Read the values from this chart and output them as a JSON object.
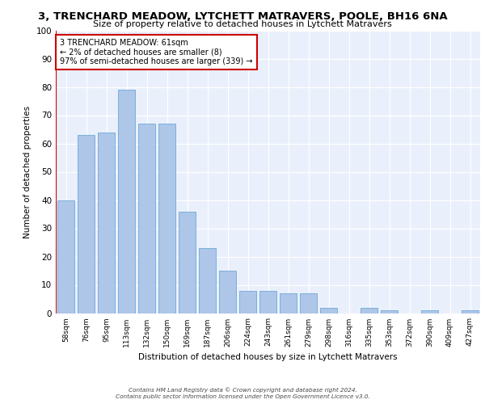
{
  "title": "3, TRENCHARD MEADOW, LYTCHETT MATRAVERS, POOLE, BH16 6NA",
  "subtitle": "Size of property relative to detached houses in Lytchett Matravers",
  "xlabel": "Distribution of detached houses by size in Lytchett Matravers",
  "ylabel": "Number of detached properties",
  "categories": [
    "58sqm",
    "76sqm",
    "95sqm",
    "113sqm",
    "132sqm",
    "150sqm",
    "169sqm",
    "187sqm",
    "206sqm",
    "224sqm",
    "243sqm",
    "261sqm",
    "279sqm",
    "298sqm",
    "316sqm",
    "335sqm",
    "353sqm",
    "372sqm",
    "390sqm",
    "409sqm",
    "427sqm"
  ],
  "values": [
    40,
    63,
    64,
    79,
    67,
    67,
    36,
    23,
    15,
    8,
    8,
    7,
    7,
    2,
    0,
    2,
    1,
    0,
    1,
    0,
    1
  ],
  "bar_color": "#aec6e8",
  "bar_edge_color": "#5a9fd4",
  "annotation_box_color": "#cc0000",
  "annotation_line1": "3 TRENCHARD MEADOW: 61sqm",
  "annotation_line2": "← 2% of detached houses are smaller (8)",
  "annotation_line3": "97% of semi-detached houses are larger (339) →",
  "ylim": [
    0,
    100
  ],
  "background_color": "#eaf0fb",
  "grid_color": "#ffffff",
  "footer_line1": "Contains HM Land Registry data © Crown copyright and database right 2024.",
  "footer_line2": "Contains public sector information licensed under the Open Government Licence v3.0."
}
